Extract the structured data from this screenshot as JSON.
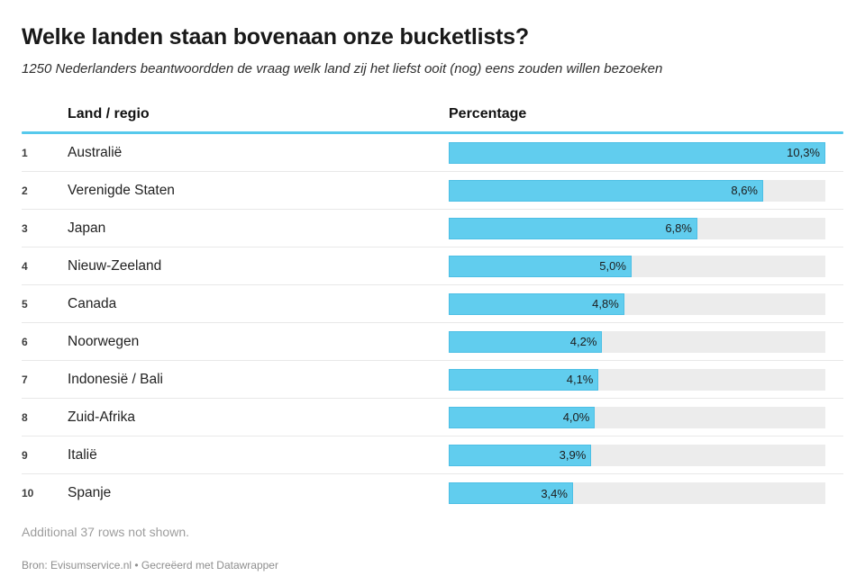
{
  "header": {
    "title": "Welke landen staan bovenaan onze bucketlists?",
    "subtitle": "1250 Nederlanders beantwoordden de vraag welk land zij het liefst ooit (nog) eens zouden willen bezoeken"
  },
  "table": {
    "columns": [
      "Land / regio",
      "Percentage"
    ]
  },
  "chart_data": {
    "type": "bar",
    "title": "Welke landen staan bovenaan onze bucketlists?",
    "subtitle": "1250 Nederlanders beantwoordden de vraag welk land zij het liefst ooit (nog) eens zouden willen bezoeken",
    "orientation": "horizontal",
    "categories": [
      "Australië",
      "Verenigde Staten",
      "Japan",
      "Nieuw-Zeeland",
      "Canada",
      "Noorwegen",
      "Indonesië / Bali",
      "Zuid-Afrika",
      "Italië",
      "Spanje"
    ],
    "ranks": [
      "1",
      "2",
      "3",
      "4",
      "5",
      "6",
      "7",
      "8",
      "9",
      "10"
    ],
    "values": [
      10.3,
      8.6,
      6.8,
      5.0,
      4.8,
      4.2,
      4.1,
      4.0,
      3.9,
      3.4
    ],
    "value_labels": [
      "10,3%",
      "8,6%",
      "6,8%",
      "5,0%",
      "4,8%",
      "4,2%",
      "4,1%",
      "4,0%",
      "3,9%",
      "3,4%"
    ],
    "xlabel": "Percentage",
    "ylabel": "Land / regio",
    "xlim": [
      0,
      10.3
    ],
    "grid": false,
    "legend": false
  },
  "footer": {
    "note": "Additional 37 rows not shown.",
    "credit": "Bron: Evisumservice.nl • Gecreëerd met Datawrapper"
  },
  "colors": {
    "bar": "#61cdee",
    "rule": "#56c9ec",
    "track": "#ececec"
  }
}
